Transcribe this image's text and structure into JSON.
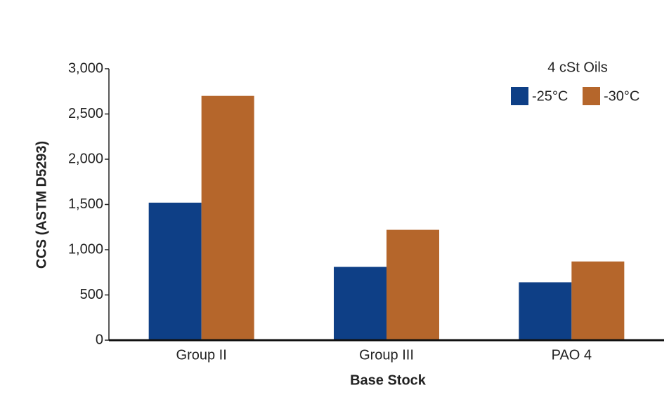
{
  "chart_data": {
    "type": "bar",
    "categories": [
      "Group II",
      "Group III",
      "PAO 4"
    ],
    "series": [
      {
        "name": "-25°C",
        "color": "#0e3f86",
        "values": [
          1520,
          810,
          640
        ]
      },
      {
        "name": "-30°C",
        "color": "#b5662b",
        "values": [
          2700,
          1220,
          870
        ]
      }
    ],
    "ylabel": "CCS (ASTM D5293)",
    "xlabel": "Base Stock",
    "legend_title": "4 cSt Oils",
    "legend": "top-right",
    "ylim": [
      0,
      3000
    ],
    "yticks": [
      0,
      500,
      {
        "value": 1000,
        "label": "1,000"
      },
      {
        "value": 1500,
        "label": "1,500"
      },
      {
        "value": 2000,
        "label": "2,000"
      },
      {
        "value": 2500,
        "label": "2,500"
      },
      {
        "value": 3000,
        "label": "3,000"
      }
    ]
  }
}
